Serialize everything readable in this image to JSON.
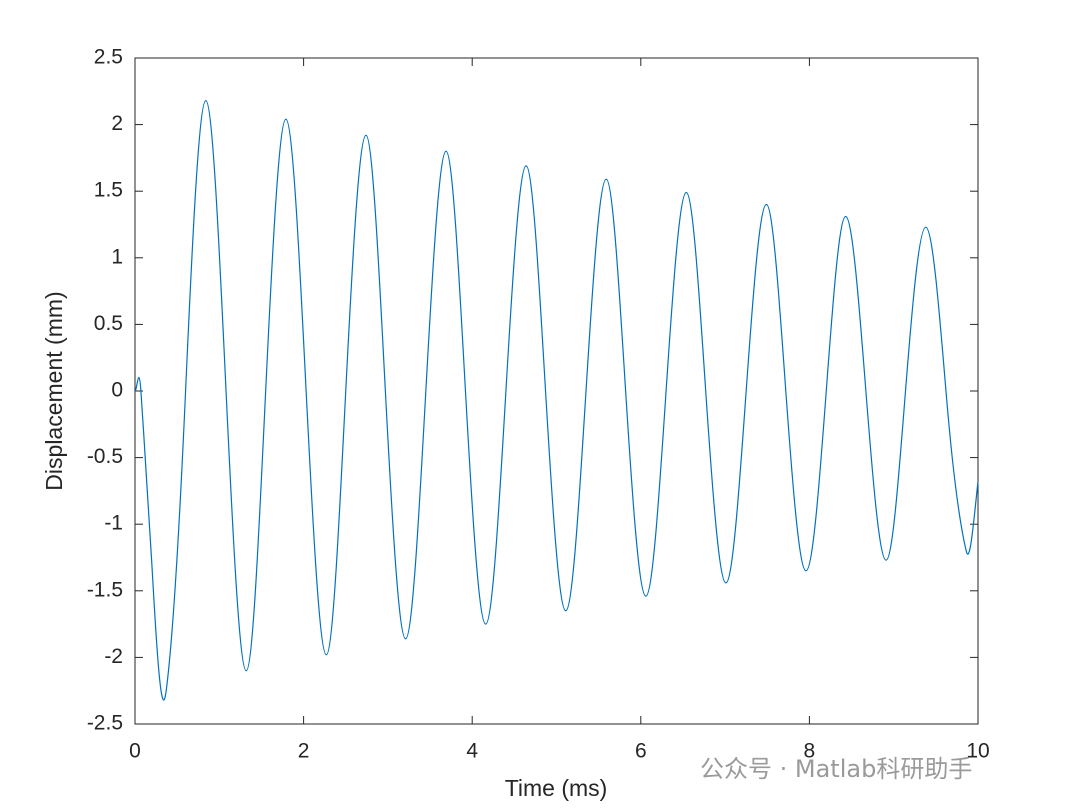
{
  "chart_data": {
    "type": "line",
    "xlabel": "Time (ms)",
    "ylabel": "Displacement (mm)",
    "watermark": "公众号 · Matlab科研助手",
    "x": [
      0,
      0.07,
      0.2,
      0.37,
      0.6,
      0.84,
      1.08,
      1.32,
      1.55,
      1.79,
      2.03,
      2.27,
      2.5,
      2.74,
      2.97,
      3.21,
      3.45,
      3.69,
      3.92,
      4.16,
      4.4,
      4.64,
      4.87,
      5.11,
      5.35,
      5.59,
      5.82,
      6.06,
      6.3,
      6.54,
      6.77,
      7.01,
      7.25,
      7.49,
      7.72,
      7.96,
      8.2,
      8.43,
      8.67,
      8.91,
      9.14,
      9.38,
      9.62,
      9.86,
      10
    ],
    "series": [
      {
        "color": "#0072bd",
        "values": [
          0,
          0,
          -1.3,
          -2.25,
          0,
          2.18,
          0,
          -2.1,
          0,
          2.04,
          0,
          -1.98,
          0,
          1.92,
          0,
          -1.86,
          0,
          1.8,
          0,
          -1.75,
          0,
          1.69,
          0,
          -1.65,
          0,
          1.59,
          0,
          -1.54,
          0,
          1.49,
          0,
          -1.44,
          0,
          1.4,
          0,
          -1.35,
          0,
          1.31,
          0,
          -1.27,
          0,
          1.23,
          0,
          -1.2,
          -0.68
        ]
      }
    ],
    "xlim": [
      0,
      10
    ],
    "xticks": [
      0,
      2,
      4,
      6,
      8,
      10
    ],
    "ylim": [
      -2.5,
      2.5
    ],
    "yticks": [
      -2.5,
      -2,
      -1.5,
      -1,
      -0.5,
      0,
      0.5,
      1,
      1.5,
      2,
      2.5
    ]
  }
}
